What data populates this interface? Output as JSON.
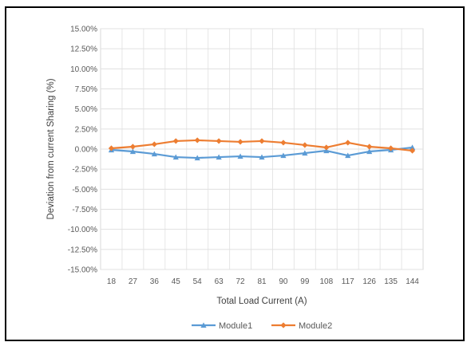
{
  "chart_data": {
    "type": "line",
    "title": "",
    "xlabel": "Total Load Current (A)",
    "ylabel": "Deviation from current Sharing (%)",
    "x": [
      18,
      27,
      36,
      45,
      54,
      63,
      72,
      81,
      90,
      99,
      108,
      117,
      126,
      135,
      144
    ],
    "ylim": [
      -15,
      15
    ],
    "y_ticks": [
      "15.00%",
      "12.50%",
      "10.00%",
      "7.50%",
      "5.00%",
      "2.50%",
      "0.00%",
      "-2.50%",
      "-5.00%",
      "-7.50%",
      "-10.00%",
      "-12.50%",
      "-15.00%"
    ],
    "grid": true,
    "legend": "bottom",
    "series": [
      {
        "name": "Module1",
        "color": "#5B9BD5",
        "marker": "triangle",
        "values": [
          -0.1,
          -0.3,
          -0.6,
          -1.0,
          -1.1,
          -1.0,
          -0.9,
          -1.0,
          -0.8,
          -0.5,
          -0.2,
          -0.8,
          -0.3,
          -0.1,
          0.2
        ]
      },
      {
        "name": "Module2",
        "color": "#ED7D31",
        "marker": "diamond",
        "values": [
          0.1,
          0.3,
          0.6,
          1.0,
          1.1,
          1.0,
          0.9,
          1.0,
          0.8,
          0.5,
          0.2,
          0.8,
          0.3,
          0.1,
          -0.2
        ]
      }
    ]
  }
}
